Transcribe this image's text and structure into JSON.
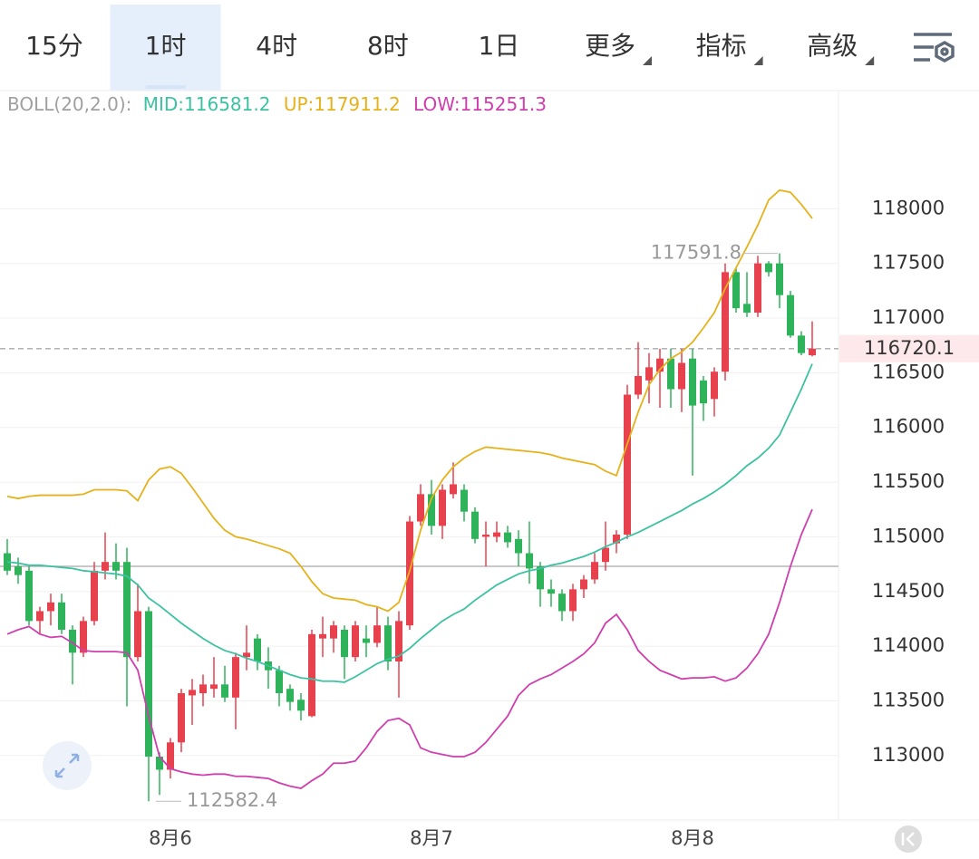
{
  "tabs": {
    "items": [
      {
        "label": "15分",
        "dropdown": false
      },
      {
        "label": "1时",
        "dropdown": false
      },
      {
        "label": "4时",
        "dropdown": false
      },
      {
        "label": "8时",
        "dropdown": false
      },
      {
        "label": "1日",
        "dropdown": false
      },
      {
        "label": "更多",
        "dropdown": true
      },
      {
        "label": "指标",
        "dropdown": true
      },
      {
        "label": "高级",
        "dropdown": true
      }
    ],
    "active": 1
  },
  "chart_data": {
    "type": "candlestick",
    "indicator": "BOLL(20,2.0):",
    "categories": [
      null,
      null,
      null,
      null,
      null,
      null,
      null,
      null,
      null,
      null,
      null,
      null,
      null,
      null,
      null,
      "8月6",
      null,
      null,
      null,
      null,
      null,
      null,
      null,
      null,
      null,
      null,
      null,
      null,
      null,
      null,
      null,
      null,
      null,
      null,
      null,
      null,
      null,
      null,
      null,
      "8月7",
      null,
      null,
      null,
      null,
      null,
      null,
      null,
      null,
      null,
      null,
      null,
      null,
      null,
      null,
      null,
      null,
      null,
      null,
      null,
      null,
      null,
      null,
      null,
      "8月8",
      null,
      null,
      null,
      null,
      null,
      null,
      null,
      null,
      null,
      null,
      null
    ],
    "open": [
      114850,
      114730,
      114690,
      114230,
      114320,
      114400,
      114150,
      113940,
      114230,
      114690,
      114770,
      114770,
      113900,
      114320,
      112990,
      112870,
      113120,
      113550,
      113570,
      113610,
      113650,
      113530,
      113900,
      114070,
      113860,
      113780,
      113610,
      113510,
      113360,
      114070,
      114070,
      114150,
      113900,
      114070,
      114030,
      114190,
      113860,
      114190,
      115140,
      115390,
      115100,
      115390,
      115430,
      115230,
      115000,
      115000,
      115040,
      114980,
      114850,
      114730,
      114520,
      114480,
      114320,
      114520,
      114610,
      114770,
      114940,
      115020,
      116300,
      116430,
      116510,
      116630,
      116350,
      116630,
      116430,
      116260,
      116510,
      117420,
      117130,
      117050,
      117500,
      117500,
      117210,
      116840,
      116660
    ],
    "high": [
      114980,
      114810,
      114730,
      114360,
      114480,
      114480,
      114190,
      114270,
      114770,
      115040,
      114940,
      114900,
      114570,
      114360,
      113030,
      113160,
      113610,
      113700,
      113740,
      113900,
      113820,
      113940,
      114190,
      114110,
      113990,
      113820,
      113650,
      113570,
      114150,
      114270,
      114230,
      114190,
      114230,
      114190,
      114360,
      114270,
      114320,
      115190,
      115480,
      115520,
      115480,
      115680,
      115480,
      115270,
      115140,
      115140,
      115100,
      115060,
      115140,
      114770,
      114610,
      114520,
      114570,
      114650,
      114850,
      115140,
      115060,
      116390,
      116780,
      116680,
      116720,
      116720,
      116720,
      116720,
      116470,
      116550,
      117500,
      117460,
      117420,
      117570,
      117520,
      117591.8,
      117250,
      116880,
      116970
    ],
    "low": [
      114650,
      114570,
      114190,
      114110,
      114190,
      114110,
      113650,
      113900,
      114190,
      114610,
      114610,
      113450,
      113860,
      112582.4,
      112640,
      112790,
      113030,
      113280,
      113450,
      113530,
      113490,
      113240,
      113780,
      113780,
      113610,
      113450,
      113410,
      113320,
      113350,
      113900,
      113940,
      113700,
      113860,
      113900,
      113990,
      113780,
      113530,
      114150,
      115100,
      115020,
      114980,
      115350,
      115140,
      114940,
      114730,
      114950,
      114900,
      114730,
      114570,
      114360,
      114360,
      114230,
      114230,
      114440,
      114570,
      114690,
      114850,
      114980,
      116260,
      116220,
      116180,
      116180,
      116140,
      115560,
      116060,
      116100,
      116430,
      117050,
      117010,
      117010,
      117380,
      117090,
      116820,
      116660,
      116650
    ],
    "close": [
      114690,
      114650,
      114230,
      114320,
      114400,
      114150,
      113940,
      114230,
      114690,
      114770,
      114690,
      113900,
      114320,
      112990,
      112870,
      113120,
      113570,
      113600,
      113650,
      113650,
      113530,
      113900,
      113940,
      113860,
      113780,
      113570,
      113490,
      113410,
      114110,
      114110,
      114190,
      113900,
      114190,
      114030,
      114190,
      113860,
      114230,
      115140,
      115390,
      115100,
      115430,
      115480,
      115230,
      114980,
      115020,
      115040,
      114950,
      114850,
      114710,
      114520,
      114480,
      114320,
      114520,
      114610,
      114770,
      114900,
      115020,
      116300,
      116470,
      116550,
      116630,
      116350,
      116590,
      116200,
      116220,
      116510,
      117420,
      117090,
      117050,
      117500,
      117420,
      117210,
      116840,
      116680,
      116720.1
    ],
    "up_color": "#e8414e",
    "down_color": "#2fb35a",
    "bands": [
      {
        "name": "MID:",
        "color": "#3cc2a2",
        "values": [
          114770,
          114760,
          114740,
          114740,
          114730,
          114720,
          114710,
          114690,
          114680,
          114670,
          114660,
          114640,
          114560,
          114440,
          114370,
          114290,
          114210,
          114140,
          114070,
          114010,
          113960,
          113930,
          113890,
          113860,
          113820,
          113780,
          113740,
          113710,
          113700,
          113680,
          113680,
          113670,
          113720,
          113780,
          113840,
          113880,
          113910,
          113980,
          114070,
          114150,
          114230,
          114290,
          114340,
          114420,
          114490,
          114560,
          114610,
          114660,
          114690,
          114710,
          114740,
          114760,
          114790,
          114820,
          114860,
          114910,
          114950,
          115000,
          115040,
          115090,
          115140,
          115190,
          115240,
          115300,
          115350,
          115410,
          115480,
          115560,
          115650,
          115720,
          115810,
          115930,
          116140,
          116350,
          116581.2
        ]
      },
      {
        "name": "UP:",
        "color": "#e5b21c",
        "values": [
          115370,
          115350,
          115370,
          115380,
          115380,
          115380,
          115380,
          115390,
          115430,
          115430,
          115430,
          115420,
          115330,
          115520,
          115620,
          115640,
          115580,
          115450,
          115310,
          115170,
          115060,
          115000,
          114980,
          114950,
          114920,
          114890,
          114850,
          114730,
          114590,
          114480,
          114440,
          114430,
          114420,
          114380,
          114360,
          114320,
          114400,
          114690,
          115060,
          115350,
          115520,
          115640,
          115720,
          115780,
          115820,
          115810,
          115800,
          115790,
          115780,
          115770,
          115750,
          115720,
          115700,
          115680,
          115660,
          115600,
          115560,
          115850,
          116140,
          116390,
          116530,
          116630,
          116690,
          116780,
          116910,
          117050,
          117270,
          117460,
          117650,
          117850,
          118080,
          118170,
          118150,
          118040,
          117911.2
        ]
      },
      {
        "name": "LOW:",
        "color": "#cf3fae",
        "values": [
          114110,
          114150,
          114180,
          114110,
          114080,
          114090,
          114030,
          113960,
          113950,
          113950,
          113950,
          113940,
          113780,
          113360,
          112990,
          112880,
          112850,
          112830,
          112820,
          112830,
          112830,
          112810,
          112810,
          112800,
          112790,
          112750,
          112720,
          112700,
          112770,
          112830,
          112930,
          112930,
          112950,
          113070,
          113220,
          113320,
          113340,
          113280,
          113070,
          113030,
          113010,
          112990,
          112990,
          113030,
          113120,
          113240,
          113360,
          113550,
          113650,
          113700,
          113740,
          113800,
          113860,
          113930,
          114030,
          114210,
          114290,
          114150,
          113960,
          113860,
          113780,
          113740,
          113700,
          113710,
          113710,
          113720,
          113680,
          113710,
          113800,
          113930,
          114110,
          114400,
          114730,
          115020,
          115251.3
        ]
      }
    ],
    "reference_line": 114730,
    "ylim": [
      112410,
      119080
    ],
    "yticks": [
      113000,
      113500,
      114000,
      114500,
      115000,
      115500,
      116000,
      116500,
      117000,
      117500,
      118000
    ],
    "grid": true
  }
}
